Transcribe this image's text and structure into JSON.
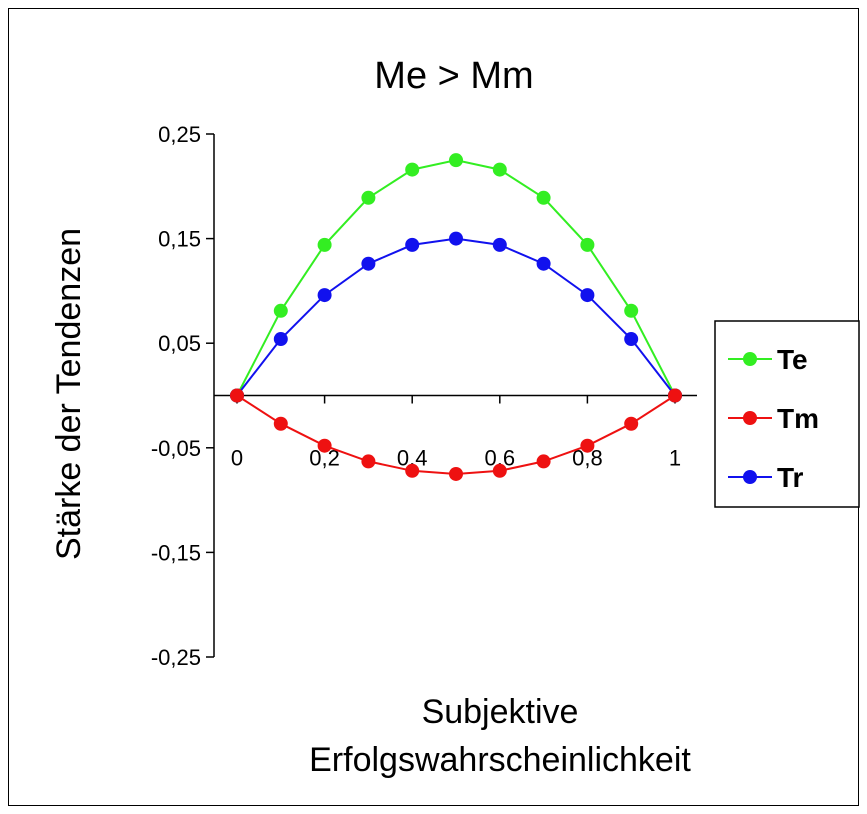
{
  "chart_data": {
    "type": "line",
    "title": "Me > Mm",
    "xlabel": [
      "Subjektive",
      "Erfolgswahrscheinlichkeit"
    ],
    "ylabel": "Stärke der Tendenzen",
    "x": [
      0,
      0.1,
      0.2,
      0.3,
      0.4,
      0.5,
      0.6,
      0.7,
      0.8,
      0.9,
      1
    ],
    "xlim": [
      0,
      1
    ],
    "ylim": [
      -0.25,
      0.25
    ],
    "x_ticks": [
      0,
      0.2,
      0.4,
      0.6,
      0.8,
      1
    ],
    "x_tick_labels": [
      "0",
      "0,2",
      "0,4",
      "0,6",
      "0,8",
      "1"
    ],
    "y_ticks": [
      0.25,
      0.15,
      0.05,
      -0.05,
      -0.15,
      -0.25
    ],
    "y_tick_labels": [
      "0,25",
      "0,15",
      "0,05",
      "-0,05",
      "-0,15",
      "-0,25"
    ],
    "grid": false,
    "legend_position": "right",
    "series": [
      {
        "name": "Te",
        "color": "#33ee22",
        "values": [
          0,
          0.081,
          0.144,
          0.189,
          0.216,
          0.225,
          0.216,
          0.189,
          0.144,
          0.081,
          0
        ]
      },
      {
        "name": "Tm",
        "color": "#ee1111",
        "values": [
          0,
          -0.027,
          -0.048,
          -0.063,
          -0.072,
          -0.075,
          -0.072,
          -0.063,
          -0.048,
          -0.027,
          0
        ]
      },
      {
        "name": "Tr",
        "color": "#1111ee",
        "values": [
          0,
          0.054,
          0.096,
          0.126,
          0.144,
          0.15,
          0.144,
          0.126,
          0.096,
          0.054,
          0
        ]
      }
    ]
  }
}
